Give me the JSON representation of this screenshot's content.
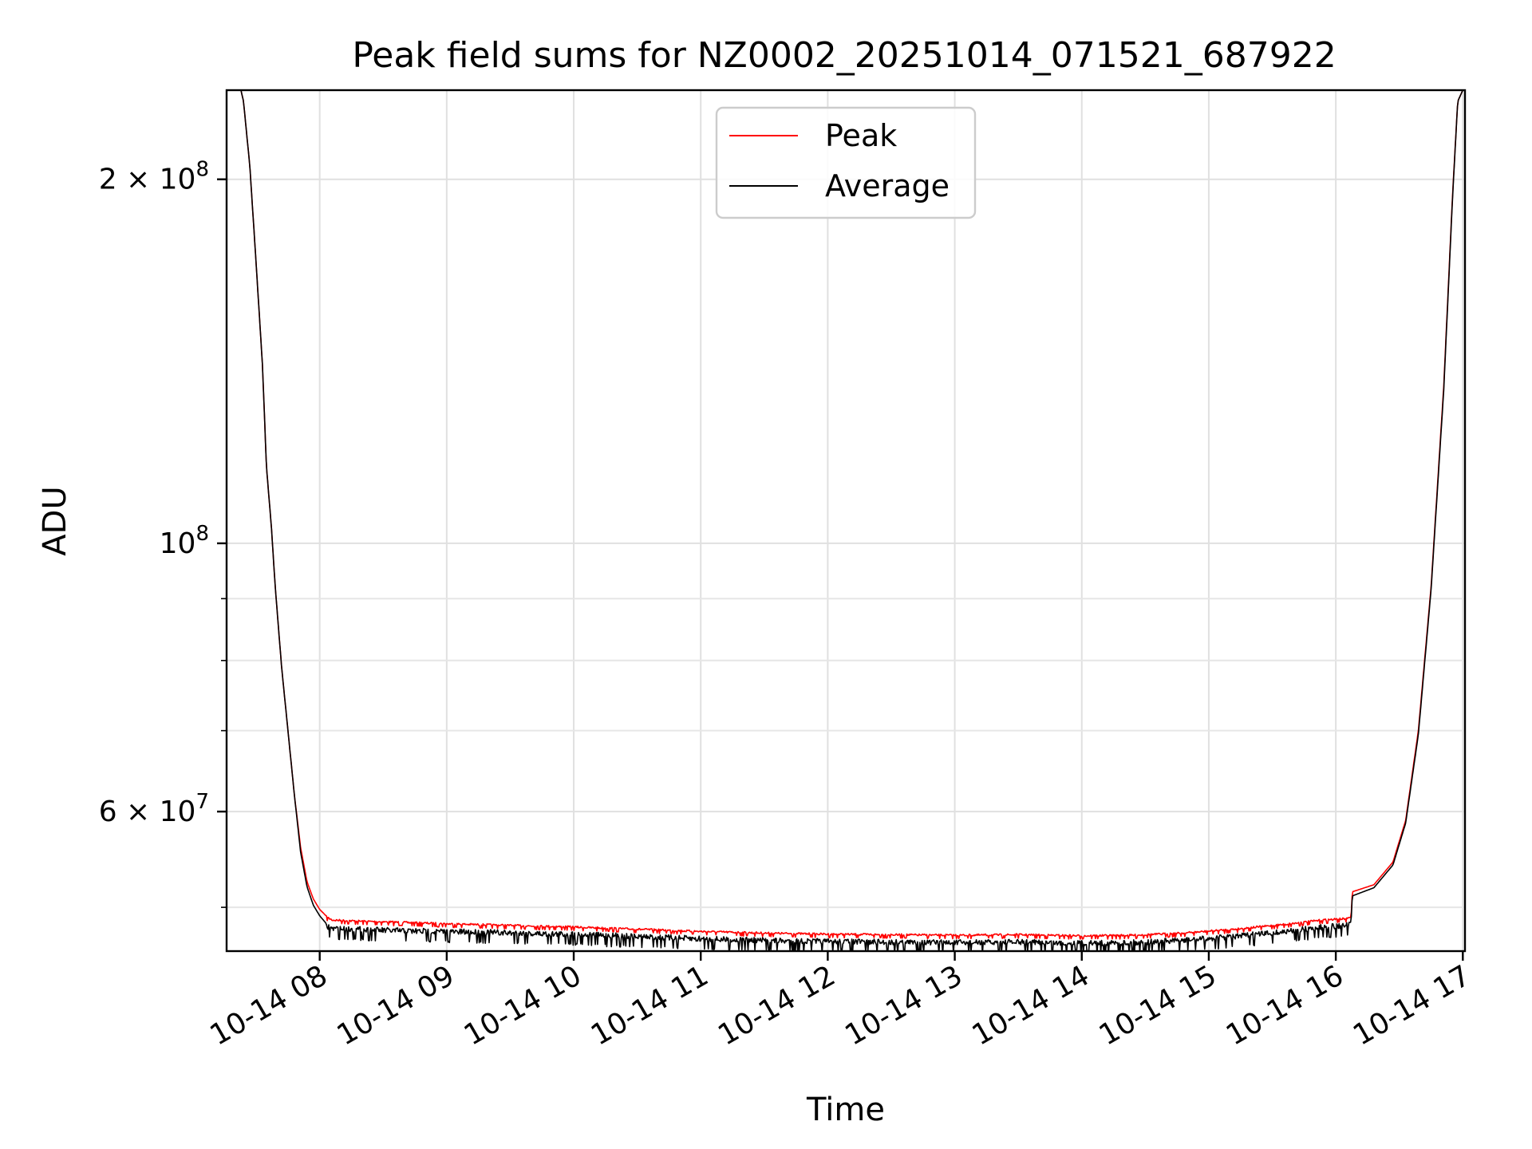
{
  "chart_data": {
    "type": "line",
    "title": "Peak field sums for NZ0002_20251014_071521_687922",
    "xlabel": "Time",
    "ylabel": "ADU",
    "yscale": "log",
    "ylim": [
      46000000,
      237000000
    ],
    "xlim": [
      7.267,
      17.017
    ],
    "grid": true,
    "legend_position": "upper-center",
    "x_ticks": [
      {
        "value": 8,
        "label": "10-14 08"
      },
      {
        "value": 9,
        "label": "10-14 09"
      },
      {
        "value": 10,
        "label": "10-14 10"
      },
      {
        "value": 11,
        "label": "10-14 11"
      },
      {
        "value": 12,
        "label": "10-14 12"
      },
      {
        "value": 13,
        "label": "10-14 13"
      },
      {
        "value": 14,
        "label": "10-14 14"
      },
      {
        "value": 15,
        "label": "10-14 15"
      },
      {
        "value": 16,
        "label": "10-14 16"
      },
      {
        "value": 17,
        "label": "10-14 17"
      }
    ],
    "y_major_ticks": [
      {
        "value": 200000000,
        "label": "2 × 10",
        "exp": "8"
      },
      {
        "value": 100000000,
        "label": "10",
        "exp": "8"
      },
      {
        "value": 60000000,
        "label": "6 × 10",
        "exp": "7"
      }
    ],
    "y_minor_ticks": [
      50000000,
      70000000,
      80000000,
      90000000
    ],
    "series": [
      {
        "name": "Peak",
        "color": "#ff0000",
        "x": [
          7.38,
          7.4,
          7.45,
          7.5,
          7.55,
          7.58,
          7.62,
          7.65,
          7.7,
          7.75,
          7.8,
          7.85,
          7.9,
          7.95,
          8.0,
          8.05,
          8.1,
          8.3,
          8.6,
          9.0,
          9.5,
          10.0,
          10.5,
          11.0,
          11.5,
          12.0,
          12.5,
          13.0,
          13.5,
          14.0,
          14.4,
          14.8,
          15.2,
          15.6,
          15.9,
          16.12,
          16.13,
          16.3,
          16.45,
          16.55,
          16.65,
          16.75,
          16.85,
          16.92,
          16.96,
          17.0
        ],
        "values": [
          237000000,
          232000000,
          205000000,
          170000000,
          140000000,
          116000000,
          103000000,
          92000000,
          79000000,
          70000000,
          62000000,
          56000000,
          52500000,
          50800000,
          49800000,
          49200000,
          48900000,
          48800000,
          48700000,
          48550000,
          48400000,
          48250000,
          48050000,
          47850000,
          47700000,
          47600000,
          47550000,
          47500000,
          47550000,
          47450000,
          47500000,
          47700000,
          48050000,
          48500000,
          48900000,
          49050000,
          51500000,
          52200000,
          54500000,
          59000000,
          70000000,
          92000000,
          135000000,
          195000000,
          232000000,
          237000000
        ]
      },
      {
        "name": "Average",
        "color": "#000000",
        "x": [
          7.38,
          7.4,
          7.45,
          7.5,
          7.55,
          7.58,
          7.62,
          7.65,
          7.7,
          7.75,
          7.8,
          7.85,
          7.9,
          7.95,
          8.0,
          8.05,
          8.1,
          8.3,
          8.6,
          9.0,
          9.5,
          10.0,
          10.5,
          11.0,
          11.5,
          12.0,
          12.5,
          13.0,
          13.5,
          14.0,
          14.4,
          14.8,
          15.2,
          15.6,
          15.9,
          16.12,
          16.13,
          16.3,
          16.45,
          16.55,
          16.65,
          16.75,
          16.85,
          16.92,
          16.96,
          17.0
        ],
        "values": [
          237000000,
          232000000,
          205000000,
          170000000,
          140000000,
          116000000,
          103000000,
          92000000,
          79000000,
          70000000,
          62000000,
          55500000,
          52000000,
          50200000,
          49200000,
          48500000,
          48300000,
          48200000,
          48100000,
          48000000,
          47900000,
          47750000,
          47550000,
          47350000,
          47200000,
          47100000,
          47050000,
          47000000,
          47050000,
          46950000,
          47000000,
          47200000,
          47550000,
          48000000,
          48400000,
          48600000,
          51100000,
          51900000,
          54200000,
          58700000,
          69500000,
          91500000,
          134000000,
          194000000,
          232000000,
          237000000
        ]
      }
    ]
  }
}
